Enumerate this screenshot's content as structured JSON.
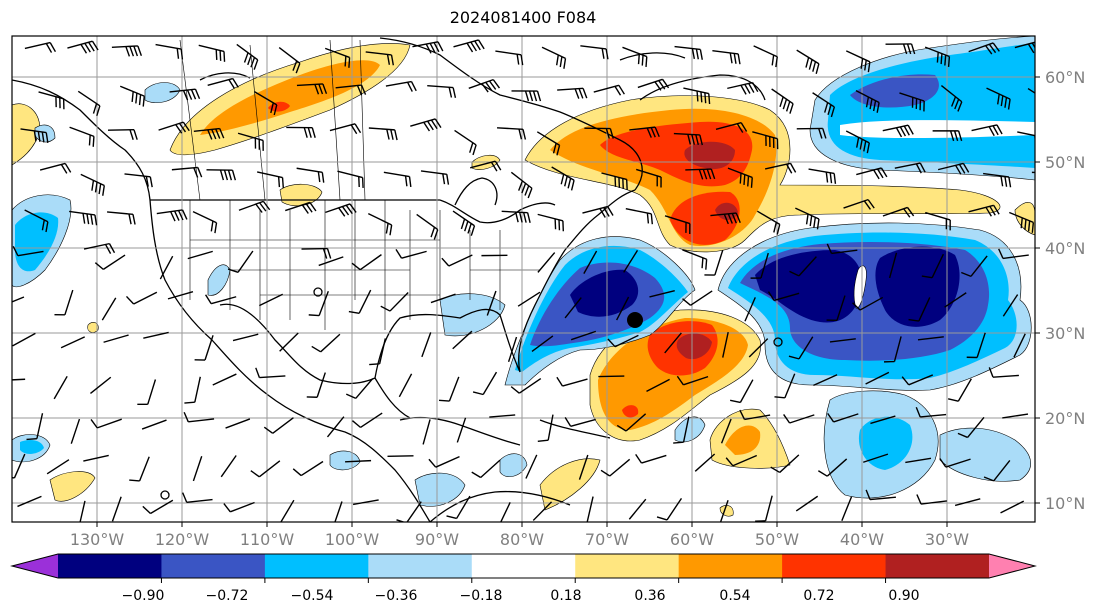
{
  "title": "2024081400 F084",
  "longitude_labels": [
    "130°W",
    "120°W",
    "110°W",
    "100°W",
    "90°W",
    "80°W",
    "70°W",
    "60°W",
    "50°W",
    "40°W",
    "30°W"
  ],
  "latitude_labels": [
    "60°N",
    "50°N",
    "40°N",
    "30°N",
    "20°N",
    "10°N"
  ],
  "colorbar": {
    "ticks": [
      "−0.90",
      "−0.72",
      "−0.54",
      "−0.36",
      "−0.18",
      "0.18",
      "0.36",
      "0.54",
      "0.72",
      "0.90"
    ],
    "colors": [
      "#9b30d9",
      "#00007f",
      "#3a55c4",
      "#00bfff",
      "#aadcf8",
      "#ffffff",
      "#ffe680",
      "#ff9900",
      "#ff3300",
      "#b02020",
      "#ff80b0"
    ]
  },
  "palette": {
    "neg_dark": "#00007f",
    "neg_mid": "#3a55c4",
    "neg_light": "#00bfff",
    "neg_pale": "#aadcf8",
    "pos_pale": "#ffe680",
    "pos_mid": "#ff9900",
    "pos_strong": "#ff3300",
    "pos_dark": "#b02020"
  },
  "markers": [
    {
      "name": "storm-center-dot",
      "lon": -66.5,
      "lat": 31.5
    }
  ]
}
